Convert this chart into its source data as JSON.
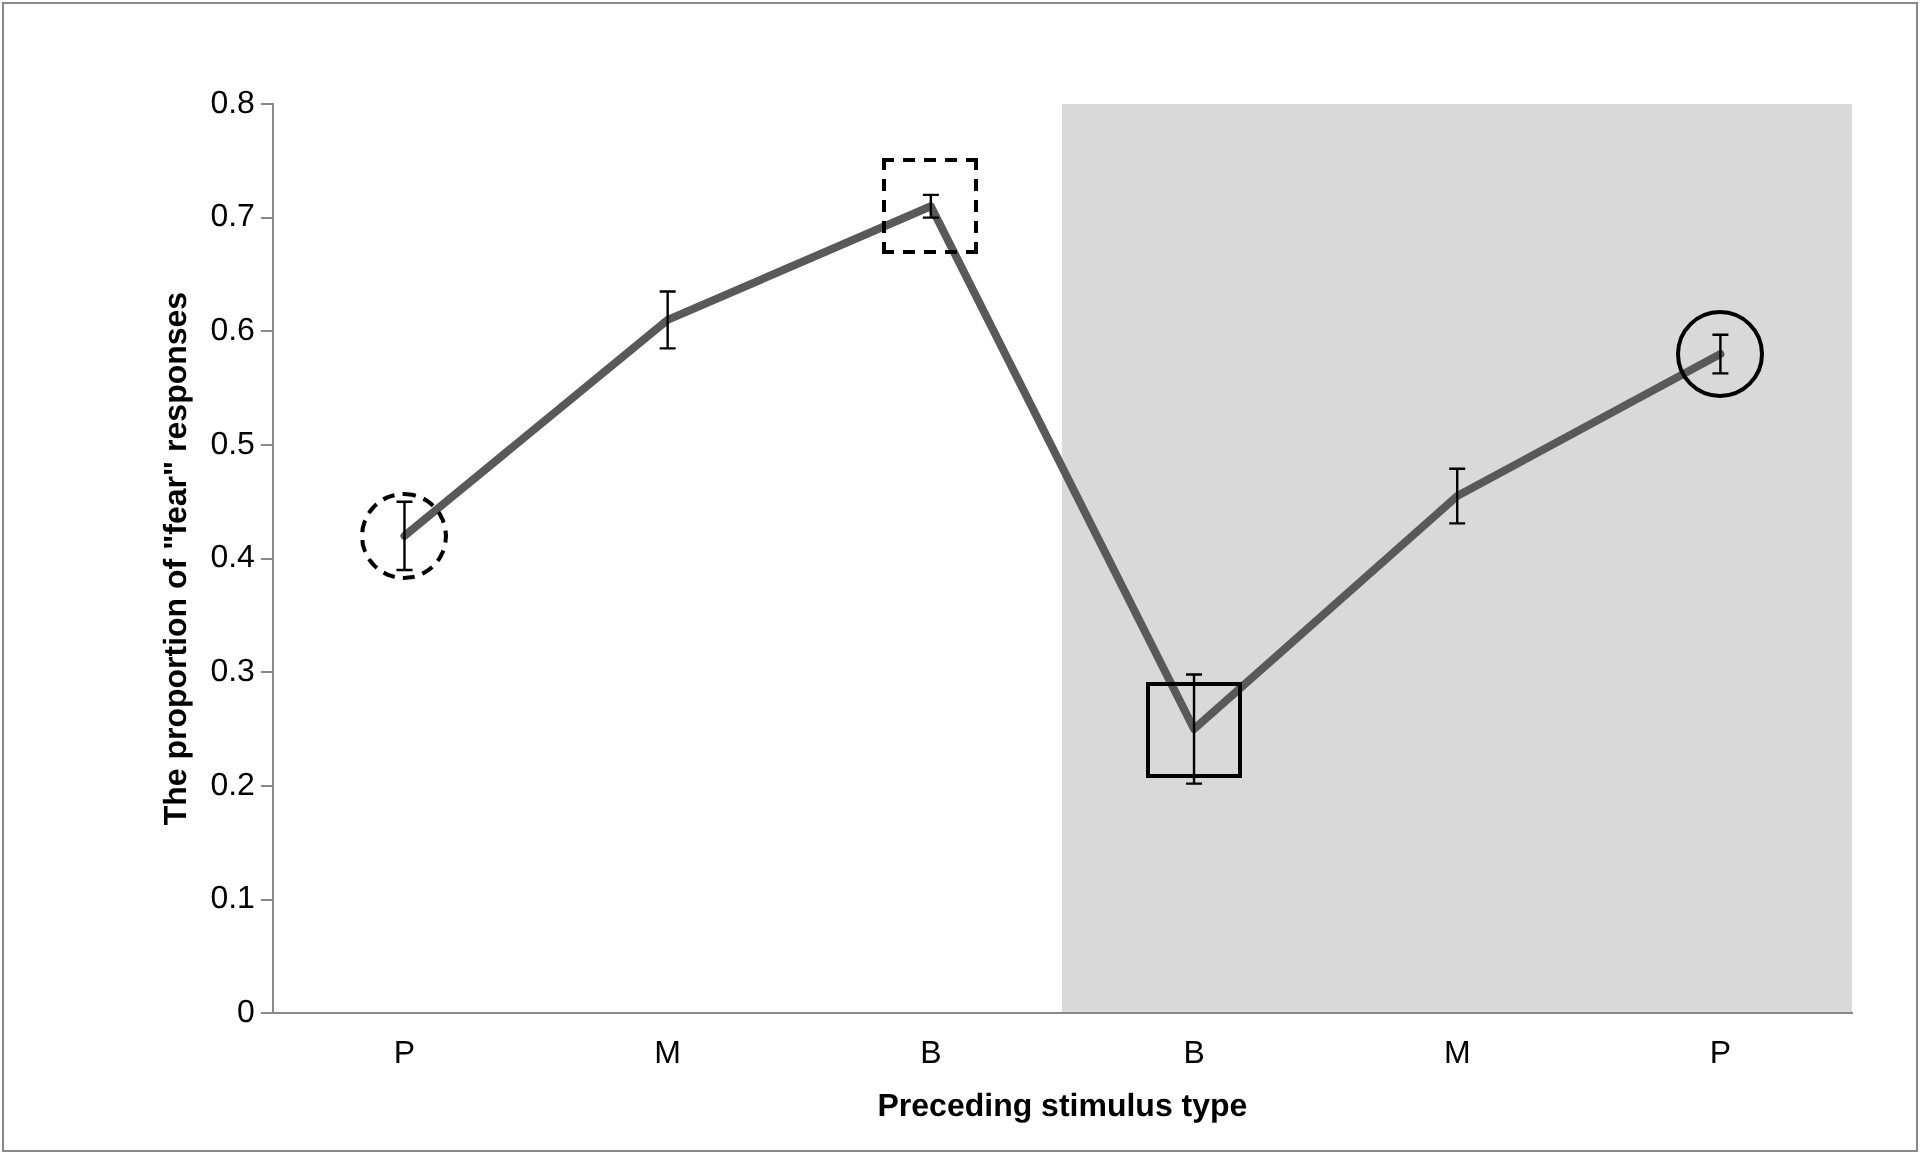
{
  "chart_data": {
    "type": "line",
    "xlabel": "Preceding stimulus type",
    "ylabel": "The proportion of \"fear\" responses",
    "categories": [
      "P",
      "M",
      "B",
      "B",
      "M",
      "P"
    ],
    "series": [
      {
        "color": "#595959",
        "values": [
          0.42,
          0.61,
          0.71,
          0.25,
          0.455,
          0.58
        ],
        "errors": [
          0.03,
          0.025,
          0.01,
          0.048,
          0.024,
          0.017
        ]
      }
    ],
    "ylim": [
      0,
      0.8
    ],
    "yticks": [
      0,
      0.1,
      0.2,
      0.3,
      0.4,
      0.5,
      0.6,
      0.7,
      0.8
    ],
    "grid": false,
    "legend": false,
    "line_style": "solid"
  }
}
